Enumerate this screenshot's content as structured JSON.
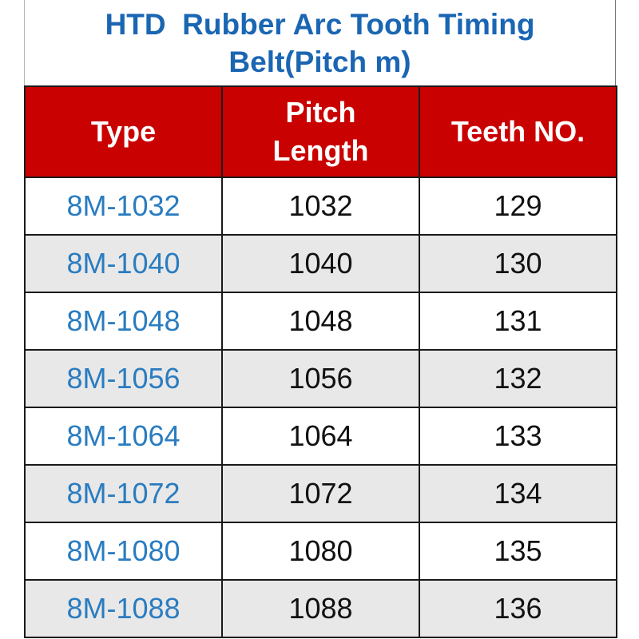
{
  "title": {
    "line1": "HTD  Rubber Arc Tooth Timing",
    "line2": "Belt(Pitch m)"
  },
  "table": {
    "columns": [
      {
        "label": "Type"
      },
      {
        "label": "Pitch\nLength"
      },
      {
        "label": "Teeth NO."
      }
    ],
    "rows": [
      {
        "type": "8M-1032",
        "pitch_length": "1032",
        "teeth_no": "129"
      },
      {
        "type": "8M-1040",
        "pitch_length": "1040",
        "teeth_no": "130"
      },
      {
        "type": "8M-1048",
        "pitch_length": "1048",
        "teeth_no": "131"
      },
      {
        "type": "8M-1056",
        "pitch_length": "1056",
        "teeth_no": "132"
      },
      {
        "type": "8M-1064",
        "pitch_length": "1064",
        "teeth_no": "133"
      },
      {
        "type": "8M-1072",
        "pitch_length": "1072",
        "teeth_no": "134"
      },
      {
        "type": "8M-1080",
        "pitch_length": "1080",
        "teeth_no": "135"
      },
      {
        "type": "8M-1088",
        "pitch_length": "1088",
        "teeth_no": "136"
      }
    ]
  },
  "colors": {
    "header_background": "#c90101",
    "header_text": "#ffffff",
    "title_text": "#1a66b3",
    "type_text": "#2a7cc0",
    "value_text": "#111111",
    "row_alt_background": "#e8e8e8",
    "grid_border": "#1a1a1a"
  },
  "chart_data": {
    "type": "table",
    "title": "HTD  Rubber Arc Tooth Timing Belt(Pitch m)",
    "columns": [
      "Type",
      "Pitch Length",
      "Teeth NO."
    ],
    "rows": [
      [
        "8M-1032",
        1032,
        129
      ],
      [
        "8M-1040",
        1040,
        130
      ],
      [
        "8M-1048",
        1048,
        131
      ],
      [
        "8M-1056",
        1056,
        132
      ],
      [
        "8M-1064",
        1064,
        133
      ],
      [
        "8M-1072",
        1072,
        134
      ],
      [
        "8M-1080",
        1080,
        135
      ],
      [
        "8M-1088",
        1088,
        136
      ]
    ]
  }
}
